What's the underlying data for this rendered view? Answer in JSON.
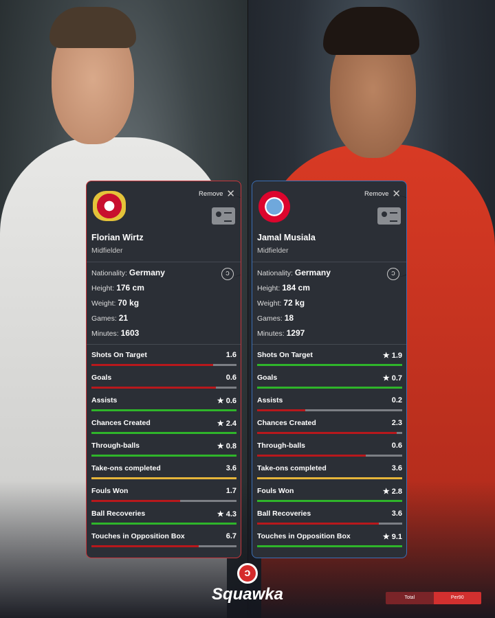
{
  "colors": {
    "good": "#2fb52a",
    "bad": "#b8181c",
    "neutral": "#e6b53a",
    "track": "#7c7f85",
    "left_border": "#c9363c",
    "right_border": "#3b6fb5"
  },
  "players": [
    {
      "name": "Florian Wirtz",
      "position": "Midfielder",
      "club_crest": "bayer-leverkusen-crest",
      "remove_label": "Remove",
      "info": [
        {
          "label": "Nationality:",
          "value": "Germany"
        },
        {
          "label": "Height:",
          "value": "176 cm"
        },
        {
          "label": "Weight:",
          "value": "70 kg"
        },
        {
          "label": "Games:",
          "value": "21"
        },
        {
          "label": "Minutes:",
          "value": "1603"
        }
      ],
      "stats": [
        {
          "label": "Shots On Target",
          "value": "1.6",
          "star": false,
          "fill": 0.84,
          "status": "bad"
        },
        {
          "label": "Goals",
          "value": "0.6",
          "star": false,
          "fill": 0.86,
          "status": "bad"
        },
        {
          "label": "Assists",
          "value": "0.6",
          "star": true,
          "fill": 1,
          "status": "good"
        },
        {
          "label": "Chances Created",
          "value": "2.4",
          "star": true,
          "fill": 1,
          "status": "good"
        },
        {
          "label": "Through-balls",
          "value": "0.8",
          "star": true,
          "fill": 1,
          "status": "good"
        },
        {
          "label": "Take-ons completed",
          "value": "3.6",
          "star": false,
          "fill": 1,
          "status": "neutral"
        },
        {
          "label": "Fouls Won",
          "value": "1.7",
          "star": false,
          "fill": 0.61,
          "status": "bad"
        },
        {
          "label": "Ball Recoveries",
          "value": "4.3",
          "star": true,
          "fill": 1,
          "status": "good"
        },
        {
          "label": "Touches in Opposition Box",
          "value": "6.7",
          "star": false,
          "fill": 0.74,
          "status": "bad"
        }
      ]
    },
    {
      "name": "Jamal Musiala",
      "position": "Midfielder",
      "club_crest": "fc-bayern-crest",
      "remove_label": "Remove",
      "info": [
        {
          "label": "Nationality:",
          "value": "Germany"
        },
        {
          "label": "Height:",
          "value": "184 cm"
        },
        {
          "label": "Weight:",
          "value": "72 kg"
        },
        {
          "label": "Games:",
          "value": "18"
        },
        {
          "label": "Minutes:",
          "value": "1297"
        }
      ],
      "stats": [
        {
          "label": "Shots On Target",
          "value": "1.9",
          "star": true,
          "fill": 1,
          "status": "good"
        },
        {
          "label": "Goals",
          "value": "0.7",
          "star": true,
          "fill": 1,
          "status": "good"
        },
        {
          "label": "Assists",
          "value": "0.2",
          "star": false,
          "fill": 0.33,
          "status": "bad"
        },
        {
          "label": "Chances Created",
          "value": "2.3",
          "star": false,
          "fill": 0.96,
          "status": "bad"
        },
        {
          "label": "Through-balls",
          "value": "0.6",
          "star": false,
          "fill": 0.75,
          "status": "bad"
        },
        {
          "label": "Take-ons completed",
          "value": "3.6",
          "star": false,
          "fill": 1,
          "status": "neutral"
        },
        {
          "label": "Fouls Won",
          "value": "2.8",
          "star": true,
          "fill": 1,
          "status": "good"
        },
        {
          "label": "Ball Recoveries",
          "value": "3.6",
          "star": false,
          "fill": 0.84,
          "status": "bad"
        },
        {
          "label": "Touches in Opposition Box",
          "value": "9.1",
          "star": true,
          "fill": 1,
          "status": "good"
        }
      ]
    }
  ],
  "brand": {
    "name": "Squawka"
  },
  "toggle": {
    "total": "Total",
    "per90": "Per90",
    "selected": "Per90"
  }
}
